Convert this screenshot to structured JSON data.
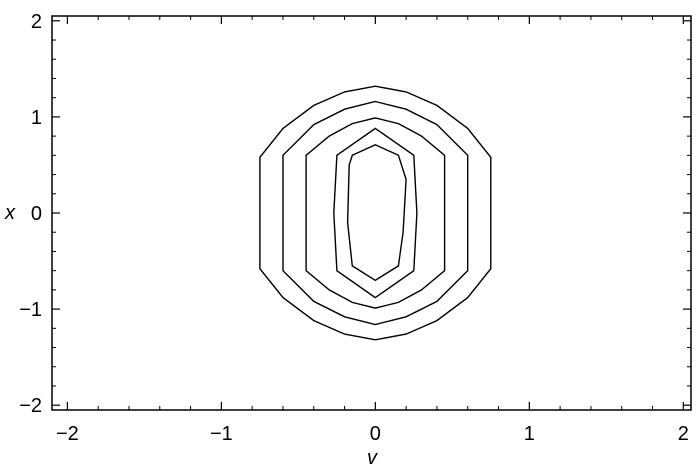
{
  "chart_data": {
    "type": "contour",
    "xlabel": "v",
    "ylabel": "x",
    "xlim": [
      -2.1,
      2.05
    ],
    "ylim": [
      -2.05,
      2.05
    ],
    "xticks": [
      {
        "value": -2,
        "label": "−2"
      },
      {
        "value": -1,
        "label": "−1"
      },
      {
        "value": 0,
        "label": "0"
      },
      {
        "value": 1,
        "label": "1"
      },
      {
        "value": 2,
        "label": "2"
      }
    ],
    "yticks": [
      {
        "value": 2,
        "label": "2"
      },
      {
        "value": 1,
        "label": "1"
      },
      {
        "value": 0,
        "label": "0"
      },
      {
        "value": -1,
        "label": "−1"
      },
      {
        "value": -2,
        "label": "−2"
      }
    ],
    "minor_tick_step": 0.2,
    "line_color": "#000000",
    "contours": [
      {
        "points": [
          [
            0,
            1.32
          ],
          [
            0.2,
            1.26
          ],
          [
            0.4,
            1.12
          ],
          [
            0.6,
            0.88
          ],
          [
            0.75,
            0.58
          ],
          [
            0.75,
            -0.58
          ],
          [
            0.6,
            -0.88
          ],
          [
            0.4,
            -1.12
          ],
          [
            0.2,
            -1.26
          ],
          [
            0,
            -1.32
          ],
          [
            -0.2,
            -1.26
          ],
          [
            -0.4,
            -1.12
          ],
          [
            -0.6,
            -0.88
          ],
          [
            -0.75,
            -0.58
          ],
          [
            -0.75,
            0.58
          ],
          [
            -0.6,
            0.88
          ],
          [
            -0.4,
            1.12
          ],
          [
            -0.2,
            1.26
          ]
        ]
      },
      {
        "points": [
          [
            0,
            1.16
          ],
          [
            0.2,
            1.08
          ],
          [
            0.4,
            0.92
          ],
          [
            0.6,
            0.6
          ],
          [
            0.6,
            -0.6
          ],
          [
            0.4,
            -0.92
          ],
          [
            0.2,
            -1.08
          ],
          [
            0,
            -1.16
          ],
          [
            -0.2,
            -1.08
          ],
          [
            -0.4,
            -0.92
          ],
          [
            -0.6,
            -0.6
          ],
          [
            -0.6,
            0.6
          ],
          [
            -0.4,
            0.92
          ],
          [
            -0.2,
            1.08
          ]
        ]
      },
      {
        "points": [
          [
            0,
            0.99
          ],
          [
            0.15,
            0.93
          ],
          [
            0.3,
            0.8
          ],
          [
            0.45,
            0.6
          ],
          [
            0.45,
            -0.6
          ],
          [
            0.3,
            -0.8
          ],
          [
            0.15,
            -0.93
          ],
          [
            0,
            -0.99
          ],
          [
            -0.15,
            -0.93
          ],
          [
            -0.3,
            -0.8
          ],
          [
            -0.45,
            -0.6
          ],
          [
            -0.45,
            0.6
          ],
          [
            -0.3,
            0.8
          ],
          [
            -0.15,
            0.93
          ]
        ]
      },
      {
        "points": [
          [
            0,
            0.88
          ],
          [
            0.25,
            0.6
          ],
          [
            0.27,
            0
          ],
          [
            0.25,
            -0.6
          ],
          [
            0,
            -0.88
          ],
          [
            -0.25,
            -0.6
          ],
          [
            -0.27,
            0
          ],
          [
            -0.25,
            0.6
          ]
        ]
      },
      {
        "points": [
          [
            0,
            0.71
          ],
          [
            0.15,
            0.6
          ],
          [
            0.2,
            0.35
          ],
          [
            0.18,
            -0.2
          ],
          [
            0.15,
            -0.55
          ],
          [
            0,
            -0.7
          ],
          [
            -0.15,
            -0.55
          ],
          [
            -0.18,
            -0.1
          ],
          [
            -0.17,
            0.5
          ],
          [
            -0.15,
            0.6
          ]
        ]
      }
    ]
  }
}
